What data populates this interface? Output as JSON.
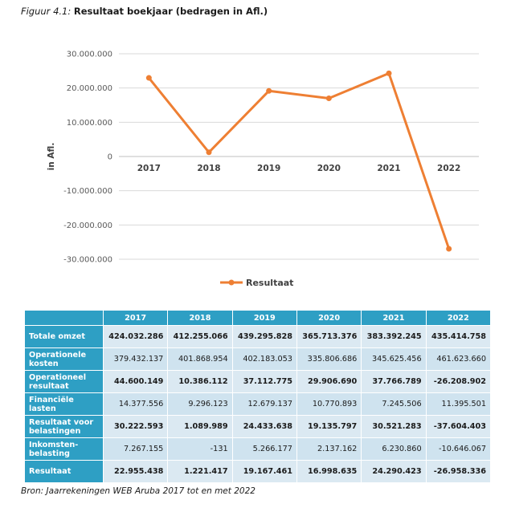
{
  "figure": {
    "label": "Figuur 4.1:",
    "title": "Resultaat boekjaar (bedragen in Afl.)"
  },
  "chart_data": {
    "type": "line",
    "x": [
      "2017",
      "2018",
      "2019",
      "2020",
      "2021",
      "2022"
    ],
    "series": [
      {
        "name": "Resultaat",
        "values": [
          22955438,
          1221417,
          19167461,
          16998635,
          24290423,
          -26958336
        ],
        "color": "#ee7f33"
      }
    ],
    "ylabel": "in Afl.",
    "ylim": [
      -30000000,
      30000000
    ],
    "yticks": [
      30000000,
      20000000,
      10000000,
      0,
      -10000000,
      -20000000,
      -30000000
    ],
    "ytick_labels": [
      "30.000.000",
      "20.000.000",
      "10.000.000",
      "0",
      "-10.000.000",
      "-20.000.000",
      "-30.000.000"
    ],
    "grid": true,
    "legend": "bottom-center"
  },
  "table": {
    "corner": "",
    "columns": [
      "2017",
      "2018",
      "2019",
      "2020",
      "2021",
      "2022"
    ],
    "rows": [
      {
        "label": "Totale omzet",
        "bold": true,
        "values": [
          "424.032.286",
          "412.255.066",
          "439.295.828",
          "365.713.376",
          "383.392.245",
          "435.414.758"
        ]
      },
      {
        "label": "Operationele kosten",
        "bold": false,
        "values": [
          "379.432.137",
          "401.868.954",
          "402.183.053",
          "335.806.686",
          "345.625.456",
          "461.623.660"
        ]
      },
      {
        "label": "Operationeel resultaat",
        "bold": true,
        "values": [
          "44.600.149",
          "10.386.112",
          "37.112.775",
          "29.906.690",
          "37.766.789",
          "-26.208.902"
        ]
      },
      {
        "label": "Financiële lasten",
        "bold": false,
        "values": [
          "14.377.556",
          "9.296.123",
          "12.679.137",
          "10.770.893",
          "7.245.506",
          "11.395.501"
        ]
      },
      {
        "label": "Resultaat voor belastingen",
        "bold": true,
        "values": [
          "30.222.593",
          "1.089.989",
          "24.433.638",
          "19.135.797",
          "30.521.283",
          "-37.604.403"
        ]
      },
      {
        "label": "Inkomsten-belasting",
        "bold": false,
        "values": [
          "7.267.155",
          "-131",
          "5.266.177",
          "2.137.162",
          "6.230.860",
          "-10.646.067"
        ]
      },
      {
        "label": "Resultaat",
        "bold": true,
        "values": [
          "22.955.438",
          "1.221.417",
          "19.167.461",
          "16.998.635",
          "24.290.423",
          "-26.958.336"
        ]
      }
    ]
  },
  "source": "Bron: Jaarrekeningen WEB Aruba 2017 tot en met 2022"
}
